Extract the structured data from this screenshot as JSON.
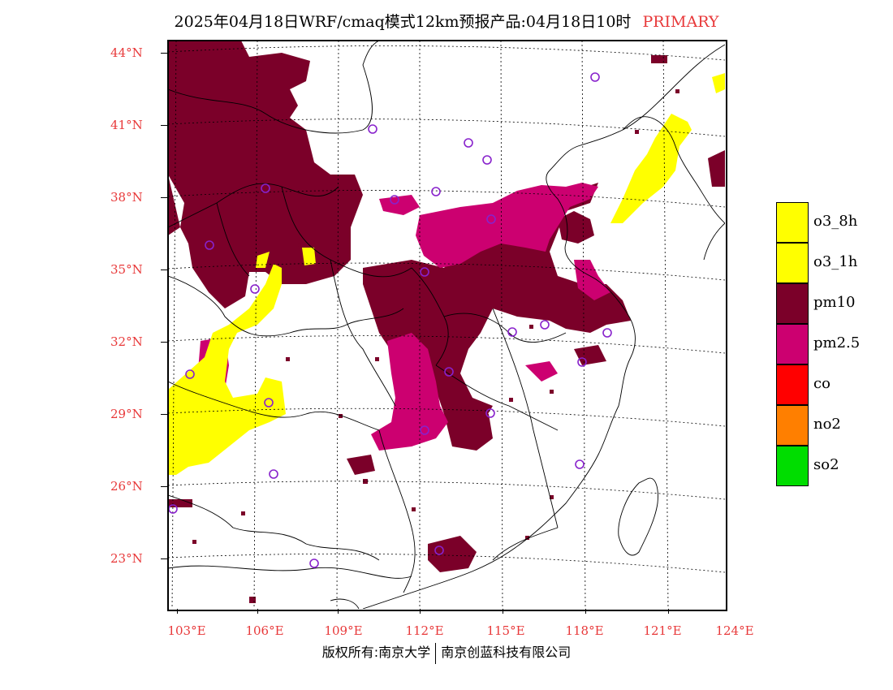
{
  "title": {
    "main": "2025年04月18日WRF/cmaq模式12km预报产品:04月18日10时",
    "tag": "PRIMARY"
  },
  "axes": {
    "latitudes": [
      "44°N",
      "41°N",
      "38°N",
      "35°N",
      "32°N",
      "29°N",
      "26°N",
      "23°N"
    ],
    "longitudes": [
      "103°E",
      "106°E",
      "109°E",
      "112°E",
      "115°E",
      "118°E",
      "121°E",
      "124°E"
    ]
  },
  "legend": [
    {
      "label": "o3_8h",
      "color": "#ffff00"
    },
    {
      "label": "o3_1h",
      "color": "#ffff00"
    },
    {
      "label": "pm10",
      "color": "#7b0029"
    },
    {
      "label": "pm2.5",
      "color": "#cc0070"
    },
    {
      "label": "co",
      "color": "#ff0000"
    },
    {
      "label": "no2",
      "color": "#ff7f00"
    },
    {
      "label": "so2",
      "color": "#00dd00"
    }
  ],
  "footer": {
    "left": "版权所有:南京大学",
    "right": "南京创蓝科技有限公司"
  }
}
